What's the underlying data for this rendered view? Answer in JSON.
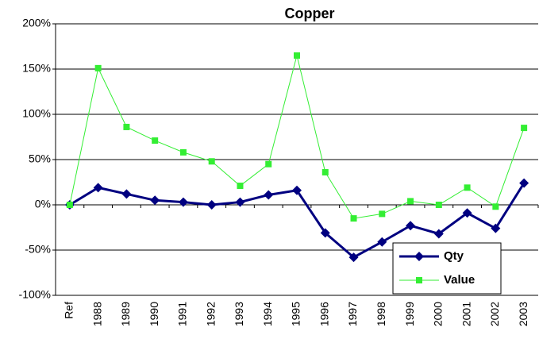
{
  "chart_data": {
    "type": "line",
    "title": "Copper",
    "categories": [
      "Ref",
      "1988",
      "1989",
      "1990",
      "1991",
      "1992",
      "1993",
      "1994",
      "1995",
      "1996",
      "1997",
      "1998",
      "1999",
      "2000",
      "2001",
      "2002",
      "2003"
    ],
    "series": [
      {
        "name": "Qty",
        "color": "#000080",
        "marker": "diamond",
        "values": [
          0,
          19,
          12,
          5,
          3,
          0,
          3,
          11,
          16,
          -31,
          -58,
          -41,
          -23,
          -32,
          -9,
          -26,
          24
        ]
      },
      {
        "name": "Value",
        "color": "#33ee33",
        "marker": "square",
        "values": [
          0,
          151,
          86,
          71,
          58,
          48,
          21,
          45,
          165,
          36,
          -15,
          -10,
          4,
          0,
          19,
          -2,
          85
        ]
      }
    ],
    "ylim": [
      -100,
      200
    ],
    "yticks": [
      {
        "value": -100,
        "label": "-100%"
      },
      {
        "value": -50,
        "label": "-50%"
      },
      {
        "value": 0,
        "label": "0%"
      },
      {
        "value": 50,
        "label": "50%"
      },
      {
        "value": 100,
        "label": "100%"
      },
      {
        "value": 150,
        "label": "150%"
      },
      {
        "value": 200,
        "label": "200%"
      }
    ],
    "grid": true,
    "legend": "lower right"
  }
}
